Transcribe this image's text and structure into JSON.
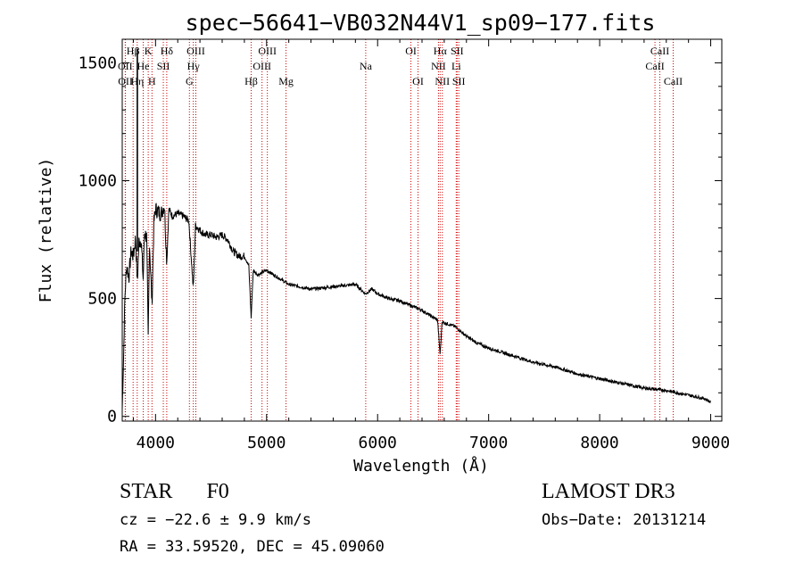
{
  "chart_data": {
    "type": "line",
    "title": "spec−56641−VB032N44V1_sp09−177.fits",
    "xlabel": "Wavelength (Å)",
    "ylabel": "Flux (relative)",
    "xlim": [
      3700,
      9100
    ],
    "ylim": [
      -20,
      1600
    ],
    "xticks": [
      4000,
      5000,
      6000,
      7000,
      8000,
      9000
    ],
    "xtick_labels": [
      "4000",
      "5000",
      "6000",
      "7000",
      "8000",
      "9000"
    ],
    "yticks": [
      0,
      500,
      1000,
      1500
    ],
    "ytick_labels": [
      "0",
      "500",
      "1000",
      "1500"
    ],
    "spectrum_anchors": [
      [
        3700,
        30
      ],
      [
        3712,
        250
      ],
      [
        3725,
        520
      ],
      [
        3740,
        640
      ],
      [
        3760,
        590
      ],
      [
        3780,
        700
      ],
      [
        3800,
        680
      ],
      [
        3820,
        760
      ],
      [
        3836,
        560
      ],
      [
        3850,
        740
      ],
      [
        3870,
        750
      ],
      [
        3889,
        580
      ],
      [
        3900,
        780
      ],
      [
        3920,
        760
      ],
      [
        3934,
        330
      ],
      [
        3945,
        740
      ],
      [
        3968,
        470
      ],
      [
        3985,
        820
      ],
      [
        4000,
        880
      ],
      [
        4020,
        870
      ],
      [
        4050,
        860
      ],
      [
        4080,
        900
      ],
      [
        4101,
        650
      ],
      [
        4120,
        880
      ],
      [
        4150,
        850
      ],
      [
        4200,
        860
      ],
      [
        4250,
        850
      ],
      [
        4300,
        830
      ],
      [
        4340,
        540
      ],
      [
        4360,
        810
      ],
      [
        4400,
        790
      ],
      [
        4450,
        770
      ],
      [
        4500,
        770
      ],
      [
        4550,
        760
      ],
      [
        4600,
        770
      ],
      [
        4650,
        750
      ],
      [
        4700,
        700
      ],
      [
        4750,
        680
      ],
      [
        4800,
        680
      ],
      [
        4840,
        640
      ],
      [
        4861,
        420
      ],
      [
        4880,
        620
      ],
      [
        4920,
        600
      ],
      [
        5000,
        620
      ],
      [
        5100,
        590
      ],
      [
        5200,
        560
      ],
      [
        5300,
        550
      ],
      [
        5400,
        540
      ],
      [
        5500,
        545
      ],
      [
        5600,
        550
      ],
      [
        5700,
        555
      ],
      [
        5800,
        560
      ],
      [
        5890,
        520
      ],
      [
        5950,
        540
      ],
      [
        6000,
        520
      ],
      [
        6100,
        500
      ],
      [
        6200,
        490
      ],
      [
        6300,
        470
      ],
      [
        6400,
        450
      ],
      [
        6500,
        420
      ],
      [
        6540,
        410
      ],
      [
        6563,
        260
      ],
      [
        6580,
        400
      ],
      [
        6650,
        390
      ],
      [
        6700,
        380
      ],
      [
        6800,
        340
      ],
      [
        6900,
        310
      ],
      [
        7000,
        290
      ],
      [
        7200,
        260
      ],
      [
        7400,
        230
      ],
      [
        7600,
        210
      ],
      [
        7800,
        180
      ],
      [
        8000,
        160
      ],
      [
        8200,
        140
      ],
      [
        8400,
        120
      ],
      [
        8600,
        110
      ],
      [
        8800,
        90
      ],
      [
        8950,
        75
      ],
      [
        9000,
        60
      ]
    ],
    "emission_lines": [
      {
        "label": "Hβ",
        "wl": 3798,
        "row": 1
      },
      {
        "label": "K",
        "wl": 3934,
        "row": 1
      },
      {
        "label": "Hδ",
        "wl": 4101,
        "row": 1
      },
      {
        "label": "OIII",
        "wl": 4363,
        "row": 1
      },
      {
        "label": "OIII",
        "wl": 5007,
        "row": 1
      },
      {
        "label": "OI",
        "wl": 6300,
        "row": 1
      },
      {
        "label": "Hα",
        "wl": 6563,
        "row": 1
      },
      {
        "label": "SII",
        "wl": 6716,
        "row": 1
      },
      {
        "label": "CaII",
        "wl": 8542,
        "row": 1
      },
      {
        "label": "OII",
        "wl": 3727,
        "row": 2
      },
      {
        "label": "He",
        "wl": 3889,
        "row": 2
      },
      {
        "label": "SII",
        "wl": 4070,
        "row": 2
      },
      {
        "label": "Hγ",
        "wl": 4340,
        "row": 2
      },
      {
        "label": "OIII",
        "wl": 4959,
        "row": 2
      },
      {
        "label": "Na",
        "wl": 5893,
        "row": 2
      },
      {
        "label": "NII",
        "wl": 6548,
        "row": 2
      },
      {
        "label": "Li",
        "wl": 6708,
        "row": 2
      },
      {
        "label": "CaII",
        "wl": 8498,
        "row": 2
      },
      {
        "label": "OII",
        "wl": 3729,
        "row": 3
      },
      {
        "label": "Hη",
        "wl": 3835,
        "row": 3
      },
      {
        "label": "H",
        "wl": 3968,
        "row": 3
      },
      {
        "label": "G",
        "wl": 4305,
        "row": 3
      },
      {
        "label": "Hβ",
        "wl": 4861,
        "row": 3
      },
      {
        "label": "Mg",
        "wl": 5175,
        "row": 3
      },
      {
        "label": "OI",
        "wl": 6364,
        "row": 3
      },
      {
        "label": "NII",
        "wl": 6583,
        "row": 3
      },
      {
        "label": "SII",
        "wl": 6731,
        "row": 3
      },
      {
        "label": "CaII",
        "wl": 8662,
        "row": 3
      }
    ],
    "line_color": "#000000",
    "marker_color": "#cc0000"
  },
  "info": {
    "class_label": "STAR",
    "subclass": "F0",
    "survey": "LAMOST DR3",
    "cz": "cz = −22.6 ± 9.9 km/s",
    "obs_date": "Obs−Date: 20131214",
    "coords": "RA =  33.59520, DEC =  45.09060"
  }
}
